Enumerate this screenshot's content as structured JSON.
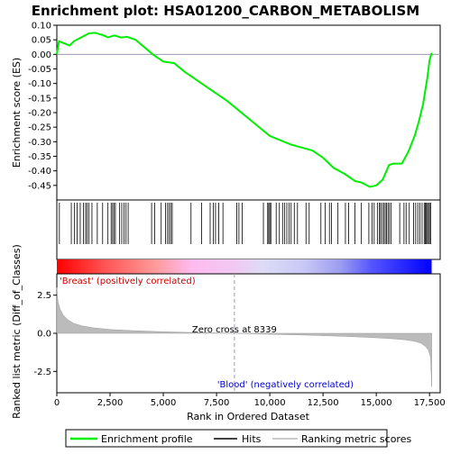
{
  "chart_data": {
    "type": "line",
    "title": "Enrichment plot: HSA01200_CARBON_METABOLISM",
    "ylabel_top": "Enrichment score (ES)",
    "ylabel_bottom": "Ranked list metric (Diff_of_Classes)",
    "xlabel": "Rank in Ordered Dataset",
    "xlim": [
      0,
      18000
    ],
    "es_ylim": [
      -0.5,
      0.1
    ],
    "metric_ylim": [
      -3.9,
      3.9
    ],
    "x_ticks": [
      0,
      2500,
      5000,
      7500,
      10000,
      12500,
      15000,
      17500
    ],
    "x_tick_labels": [
      "0",
      "2,500",
      "5,000",
      "7,500",
      "10,000",
      "12,500",
      "15,000",
      "17,500"
    ],
    "es_y_ticks": [
      0.1,
      0.05,
      0.0,
      -0.05,
      -0.1,
      -0.15,
      -0.2,
      -0.25,
      -0.3,
      -0.35,
      -0.4,
      -0.45
    ],
    "es_y_tick_labels": [
      "0.10",
      "0.05",
      "0.00",
      "-0.05",
      "-0.10",
      "-0.15",
      "-0.20",
      "-0.25",
      "-0.30",
      "-0.35",
      "-0.40",
      "-0.45"
    ],
    "metric_y_ticks": [
      2.5,
      0.0,
      -2.5
    ],
    "metric_y_tick_labels": [
      "2.5",
      "0.0",
      "-2.5"
    ],
    "enrichment_profile": {
      "x": [
        0,
        100,
        600,
        800,
        1200,
        1500,
        1800,
        2200,
        2400,
        2700,
        3000,
        3300,
        3700,
        4500,
        5000,
        5500,
        6000,
        7000,
        8000,
        9000,
        10000,
        11000,
        12000,
        12500,
        13000,
        13500,
        14000,
        14300,
        14700,
        15000,
        15300,
        15600,
        15800,
        16200,
        16500,
        16800,
        17000,
        17200,
        17400,
        17500,
        17600
      ],
      "y": [
        0.0,
        0.045,
        0.03,
        0.045,
        0.06,
        0.072,
        0.074,
        0.065,
        0.058,
        0.065,
        0.058,
        0.06,
        0.05,
        0.0,
        -0.025,
        -0.03,
        -0.06,
        -0.11,
        -0.16,
        -0.22,
        -0.28,
        -0.31,
        -0.33,
        -0.355,
        -0.39,
        -0.41,
        -0.435,
        -0.44,
        -0.455,
        -0.45,
        -0.43,
        -0.38,
        -0.375,
        -0.375,
        -0.335,
        -0.28,
        -0.23,
        -0.17,
        -0.08,
        -0.02,
        0.005
      ]
    },
    "hits": [
      120,
      680,
      820,
      950,
      1100,
      1250,
      1350,
      1420,
      1500,
      1650,
      1900,
      2150,
      2400,
      2550,
      2620,
      2680,
      2750,
      2950,
      3050,
      3150,
      3250,
      3350,
      4450,
      4600,
      4900,
      5100,
      5200,
      5280,
      5350,
      5420,
      6300,
      6800,
      7200,
      7350,
      7450,
      7600,
      7800,
      8450,
      8550,
      8700,
      9700,
      9900,
      9950,
      10000,
      10050,
      10300,
      10450,
      10600,
      10700,
      10800,
      10900,
      11000,
      11150,
      11300,
      11700,
      11850,
      12400,
      12600,
      12800,
      12900,
      13200,
      13550,
      13700,
      14000,
      14300,
      14650,
      14800,
      14900,
      15050,
      15150,
      15200,
      15280,
      15350,
      15420,
      15480,
      15550,
      15620,
      15700,
      16100,
      16300,
      16400,
      16550,
      16750,
      16850,
      16950,
      17050,
      17150,
      17250,
      17300,
      17350,
      17400,
      17450,
      17500,
      17560
    ],
    "metric_profile": {
      "x": [
        0,
        50,
        150,
        300,
        500,
        800,
        1200,
        1700,
        2500,
        3500,
        5000,
        6500,
        8339,
        10000,
        12000,
        13500,
        14500,
        15500,
        16300,
        16800,
        17100,
        17300,
        17450,
        17550,
        17600
      ],
      "y": [
        3.0,
        2.1,
        1.6,
        1.2,
        0.9,
        0.65,
        0.48,
        0.36,
        0.25,
        0.18,
        0.1,
        0.05,
        0.0,
        -0.06,
        -0.13,
        -0.2,
        -0.26,
        -0.33,
        -0.42,
        -0.52,
        -0.65,
        -0.85,
        -1.1,
        -1.6,
        -3.5
      ]
    },
    "zero_cross": 8339,
    "zero_cross_label": "Zero cross at 8339",
    "positive_label": "'Breast' (positively correlated)",
    "negative_label": "'Blood' (negatively correlated)",
    "legend": {
      "placement": "bottom",
      "entries": [
        "Enrichment profile",
        "Hits",
        "Ranking metric scores"
      ]
    },
    "colors": {
      "profile": "#00ee00",
      "hits": "#000000",
      "metric_fill": "#bbbbbb",
      "positive": "#ff0000",
      "negative": "#0000ff",
      "zero_line": "#9999bb"
    }
  }
}
